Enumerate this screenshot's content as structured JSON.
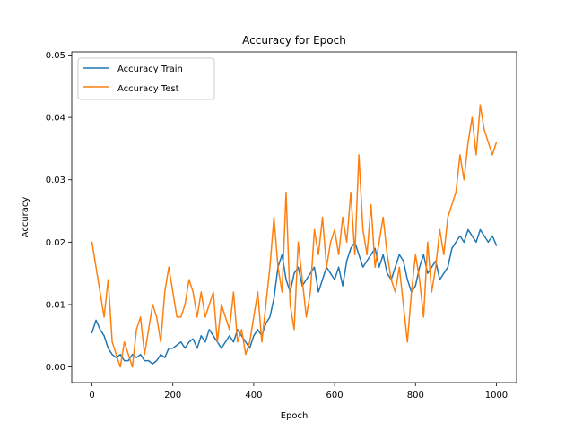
{
  "chart_data": {
    "type": "line",
    "title": "Accuracy for Epoch",
    "xlabel": "Epoch",
    "ylabel": "Accuracy",
    "xlim": [
      -50,
      1050
    ],
    "ylim": [
      -0.0025,
      0.0505
    ],
    "xticks": [
      0,
      200,
      400,
      600,
      800,
      1000
    ],
    "yticks": [
      0.0,
      0.01,
      0.02,
      0.03,
      0.04,
      0.05
    ],
    "ytick_labels": [
      "0.00",
      "0.01",
      "0.02",
      "0.03",
      "0.04",
      "0.05"
    ],
    "legend_position": "upper-left",
    "grid": false,
    "series": [
      {
        "name": "Accuracy Train",
        "color": "#1f77b4",
        "x": [
          0,
          10,
          20,
          30,
          40,
          50,
          60,
          70,
          80,
          90,
          100,
          110,
          120,
          130,
          140,
          150,
          160,
          170,
          180,
          190,
          200,
          210,
          220,
          230,
          240,
          250,
          260,
          270,
          280,
          290,
          300,
          310,
          320,
          330,
          340,
          350,
          360,
          370,
          380,
          390,
          400,
          410,
          420,
          430,
          440,
          450,
          460,
          470,
          480,
          490,
          500,
          510,
          520,
          530,
          540,
          550,
          560,
          570,
          580,
          590,
          600,
          610,
          620,
          630,
          640,
          650,
          660,
          670,
          680,
          690,
          700,
          710,
          720,
          730,
          740,
          750,
          760,
          770,
          780,
          790,
          800,
          810,
          820,
          830,
          840,
          850,
          860,
          870,
          880,
          890,
          900,
          910,
          920,
          930,
          940,
          950,
          960,
          970,
          980,
          990,
          1000
        ],
        "y": [
          0.0055,
          0.0075,
          0.006,
          0.005,
          0.003,
          0.002,
          0.0015,
          0.002,
          0.001,
          0.001,
          0.002,
          0.0015,
          0.002,
          0.001,
          0.001,
          0.0005,
          0.001,
          0.002,
          0.0015,
          0.003,
          0.003,
          0.0035,
          0.004,
          0.003,
          0.004,
          0.0045,
          0.003,
          0.005,
          0.004,
          0.006,
          0.005,
          0.004,
          0.003,
          0.004,
          0.005,
          0.004,
          0.006,
          0.005,
          0.004,
          0.003,
          0.005,
          0.006,
          0.005,
          0.007,
          0.008,
          0.011,
          0.016,
          0.018,
          0.014,
          0.012,
          0.015,
          0.016,
          0.013,
          0.014,
          0.015,
          0.016,
          0.012,
          0.014,
          0.016,
          0.015,
          0.014,
          0.016,
          0.013,
          0.017,
          0.019,
          0.02,
          0.018,
          0.016,
          0.017,
          0.018,
          0.019,
          0.016,
          0.018,
          0.015,
          0.014,
          0.016,
          0.018,
          0.017,
          0.014,
          0.012,
          0.013,
          0.016,
          0.018,
          0.015,
          0.016,
          0.017,
          0.014,
          0.015,
          0.016,
          0.019,
          0.02,
          0.021,
          0.02,
          0.022,
          0.021,
          0.02,
          0.022,
          0.021,
          0.02,
          0.021,
          0.0195
        ]
      },
      {
        "name": "Accuracy Test",
        "color": "#ff7f0e",
        "x": [
          0,
          10,
          20,
          30,
          40,
          50,
          60,
          70,
          80,
          90,
          100,
          110,
          120,
          130,
          140,
          150,
          160,
          170,
          180,
          190,
          200,
          210,
          220,
          230,
          240,
          250,
          260,
          270,
          280,
          290,
          300,
          310,
          320,
          330,
          340,
          350,
          360,
          370,
          380,
          390,
          400,
          410,
          420,
          430,
          440,
          450,
          460,
          470,
          480,
          490,
          500,
          510,
          520,
          530,
          540,
          550,
          560,
          570,
          580,
          590,
          600,
          610,
          620,
          630,
          640,
          650,
          660,
          670,
          680,
          690,
          700,
          710,
          720,
          730,
          740,
          750,
          760,
          770,
          780,
          790,
          800,
          810,
          820,
          830,
          840,
          850,
          860,
          870,
          880,
          890,
          900,
          910,
          920,
          930,
          940,
          950,
          960,
          970,
          980,
          990,
          1000
        ],
        "y": [
          0.02,
          0.016,
          0.012,
          0.008,
          0.014,
          0.004,
          0.002,
          0.0,
          0.004,
          0.002,
          0.0,
          0.006,
          0.008,
          0.002,
          0.006,
          0.01,
          0.008,
          0.004,
          0.012,
          0.016,
          0.012,
          0.008,
          0.008,
          0.01,
          0.014,
          0.012,
          0.008,
          0.012,
          0.008,
          0.01,
          0.012,
          0.004,
          0.01,
          0.008,
          0.006,
          0.012,
          0.004,
          0.006,
          0.002,
          0.004,
          0.008,
          0.012,
          0.004,
          0.01,
          0.016,
          0.024,
          0.016,
          0.012,
          0.028,
          0.01,
          0.006,
          0.02,
          0.014,
          0.008,
          0.012,
          0.022,
          0.018,
          0.024,
          0.016,
          0.02,
          0.022,
          0.018,
          0.024,
          0.02,
          0.028,
          0.018,
          0.034,
          0.022,
          0.018,
          0.026,
          0.016,
          0.02,
          0.024,
          0.018,
          0.014,
          0.012,
          0.016,
          0.01,
          0.004,
          0.012,
          0.018,
          0.014,
          0.008,
          0.02,
          0.012,
          0.016,
          0.022,
          0.018,
          0.024,
          0.026,
          0.028,
          0.034,
          0.03,
          0.036,
          0.04,
          0.034,
          0.042,
          0.038,
          0.036,
          0.034,
          0.036
        ]
      }
    ]
  }
}
